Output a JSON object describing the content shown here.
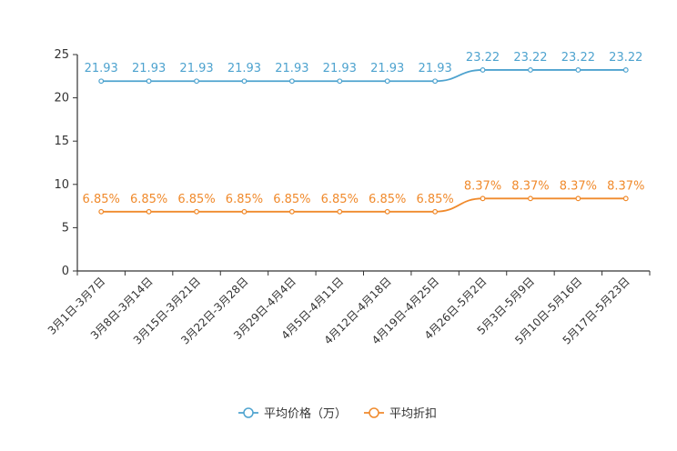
{
  "chart_data": {
    "type": "line",
    "categories": [
      "3月1日-3月7日",
      "3月8日-3月14日",
      "3月15日-3月21日",
      "3月22日-3月28日",
      "3月29日-4月4日",
      "4月5日-4月11日",
      "4月12日-4月18日",
      "4月19日-4月25日",
      "4月26日-5月2日",
      "5月3日-5月9日",
      "5月10日-5月16日",
      "5月17日-5月23日"
    ],
    "series": [
      {
        "name": "平均价格（万）",
        "color": "#4ea3cf",
        "values": [
          21.93,
          21.93,
          21.93,
          21.93,
          21.93,
          21.93,
          21.93,
          21.93,
          23.22,
          23.22,
          23.22,
          23.22
        ],
        "labels": [
          "21.93",
          "21.93",
          "21.93",
          "21.93",
          "21.93",
          "21.93",
          "21.93",
          "21.93",
          "23.22",
          "23.22",
          "23.22",
          "23.22"
        ]
      },
      {
        "name": "平均折扣",
        "color": "#f08a2c",
        "values": [
          6.85,
          6.85,
          6.85,
          6.85,
          6.85,
          6.85,
          6.85,
          6.85,
          8.37,
          8.37,
          8.37,
          8.37
        ],
        "labels": [
          "6.85%",
          "6.85%",
          "6.85%",
          "6.85%",
          "6.85%",
          "6.85%",
          "6.85%",
          "6.85%",
          "8.37%",
          "8.37%",
          "8.37%",
          "8.37%"
        ]
      }
    ],
    "yticks": [
      "0",
      "5",
      "10",
      "15",
      "20",
      "25"
    ],
    "ylim": [
      0,
      25
    ],
    "title": "",
    "xlabel": "",
    "ylabel": "",
    "grid": false,
    "legend_position": "bottom-center"
  }
}
